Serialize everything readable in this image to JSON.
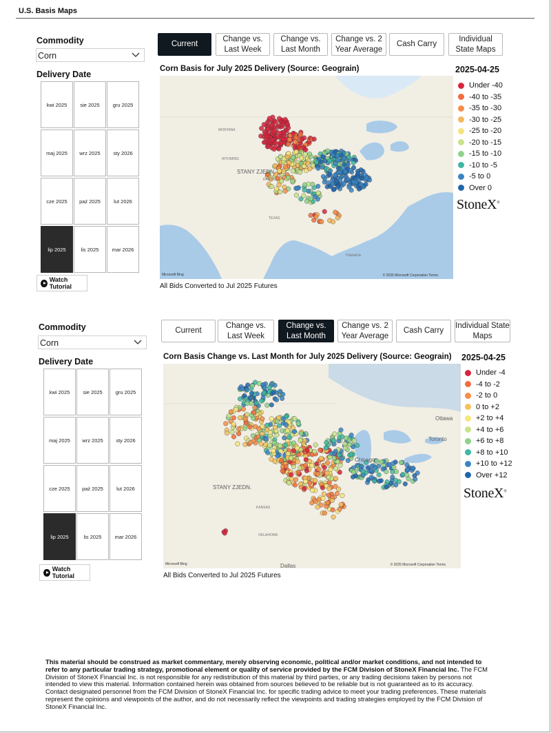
{
  "page_title": "U.S. Basis Maps",
  "top": {
    "commodity_label": "Commodity",
    "commodity_value": "Corn",
    "delivery_label": "Delivery Date",
    "dates": [
      "kwi 2025",
      "sie 2025",
      "gru 2025",
      "maj 2025",
      "wrz 2025",
      "sty 2026",
      "cze 2025",
      "paź 2025",
      "lut 2026",
      "lip 2025",
      "lis 2025",
      "mar 2026"
    ],
    "selected_date": "lip 2025",
    "tutorial": "Watch Tutorial",
    "tabs": [
      {
        "label": "Current",
        "active": true
      },
      {
        "label": "Change vs. Last Week",
        "active": false
      },
      {
        "label": "Change vs. Last Month",
        "active": false
      },
      {
        "label": "Change vs. 2 Year Average",
        "active": false
      },
      {
        "label": "Cash Carry",
        "active": false
      },
      {
        "label": "Individual State Maps",
        "active": false
      }
    ],
    "map_title": "Corn Basis for July 2025 Delivery (Source: Geograin)",
    "map_date": "2025-04-25",
    "legend": [
      {
        "label": "Under -40",
        "color": "#d7263d"
      },
      {
        "label": "-40 to -35",
        "color": "#f26d3d"
      },
      {
        "label": "-35 to -30",
        "color": "#f58e4a"
      },
      {
        "label": "-30 to -25",
        "color": "#f6b65c"
      },
      {
        "label": "-25 to -20",
        "color": "#f7e37a"
      },
      {
        "label": "-20 to -15",
        "color": "#c9e38a"
      },
      {
        "label": "-15 to -10",
        "color": "#8fd38a"
      },
      {
        "label": "-10 to -5",
        "color": "#3fb8a0"
      },
      {
        "label": "-5 to 0",
        "color": "#3a84c4"
      },
      {
        "label": "Over 0",
        "color": "#2166ac"
      }
    ],
    "brand": "StoneX",
    "footnote": "All Bids Converted to Jul 2025 Futures",
    "map_copyright": "© 2025 Microsoft Corporation  Terms",
    "map_logo": "Microsoft Bing",
    "map_labels": [
      "STANY ZJEDN.",
      "MONTANA",
      "WYOMING",
      "KANSAS",
      "TEXAS",
      "Hawana"
    ]
  },
  "bottom": {
    "commodity_label": "Commodity",
    "commodity_value": "Corn",
    "delivery_label": "Delivery Date",
    "dates": [
      "kwi 2025",
      "sie 2025",
      "gru 2025",
      "maj 2025",
      "wrz 2025",
      "sty 2026",
      "cze 2025",
      "paź 2025",
      "lut 2026",
      "lip 2025",
      "lis 2025",
      "mar 2026"
    ],
    "selected_date": "lip 2025",
    "tutorial": "Watch Tutorial",
    "tabs": [
      {
        "label": "Current",
        "active": false
      },
      {
        "label": "Change vs. Last Week",
        "active": false
      },
      {
        "label": "Change vs. Last Month",
        "active": true
      },
      {
        "label": "Change vs. 2 Year Average",
        "active": false
      },
      {
        "label": "Cash Carry",
        "active": false
      },
      {
        "label": "Individual State Maps",
        "active": false
      }
    ],
    "map_title": "Corn Basis Change vs. Last Month for July 2025 Delivery (Source: Geograin)",
    "map_date": "2025-04-25",
    "legend": [
      {
        "label": "Under -4",
        "color": "#d7263d"
      },
      {
        "label": "-4 to -2",
        "color": "#f26d3d"
      },
      {
        "label": "-2 to 0",
        "color": "#f58e4a"
      },
      {
        "label": "0 to +2",
        "color": "#f6c25e"
      },
      {
        "label": "+2 to +4",
        "color": "#f7e67c"
      },
      {
        "label": "+4 to +6",
        "color": "#c9e38a"
      },
      {
        "label": "+6 to +8",
        "color": "#8fd38a"
      },
      {
        "label": "+8 to +10",
        "color": "#3fb8a0"
      },
      {
        "label": "+10 to +12",
        "color": "#3a84c4"
      },
      {
        "label": "Over +12",
        "color": "#2166ac"
      }
    ],
    "brand": "StoneX",
    "footnote": "All Bids Converted to Jul 2025 Futures",
    "map_copyright": "© 2025 Microsoft Corporation  Terms",
    "map_logo": "Microsoft Bing",
    "map_labels": [
      "STANY ZJEDN.",
      "Ottawa",
      "Toronto",
      "Chicago",
      "KANSAS",
      "OKLAHOMA",
      "Dallas"
    ]
  },
  "disclaimer_bold": "This material should be construed as market commentary, merely observing economic, political and/or market conditions, and not intended to refer to any particular trading strategy, promotional element or quality of service provided by the FCM Division of StoneX Financial Inc.",
  "disclaimer_text": " The FCM Division of StoneX Financial Inc. is not responsible for any redistribution of this material by third parties, or any trading decisions taken by persons not intended to view this material. Information contained herein was obtained from sources believed to be reliable but is not guaranteed as to its accuracy. Contact designated personnel from the FCM Division of StoneX Financial Inc. for specific trading advice to meet your trading preferences. These materials represent the opinions and viewpoints of the author, and do not necessarily reflect the viewpoints and trading strategies employed by the FCM Division of StoneX Financial Inc."
}
